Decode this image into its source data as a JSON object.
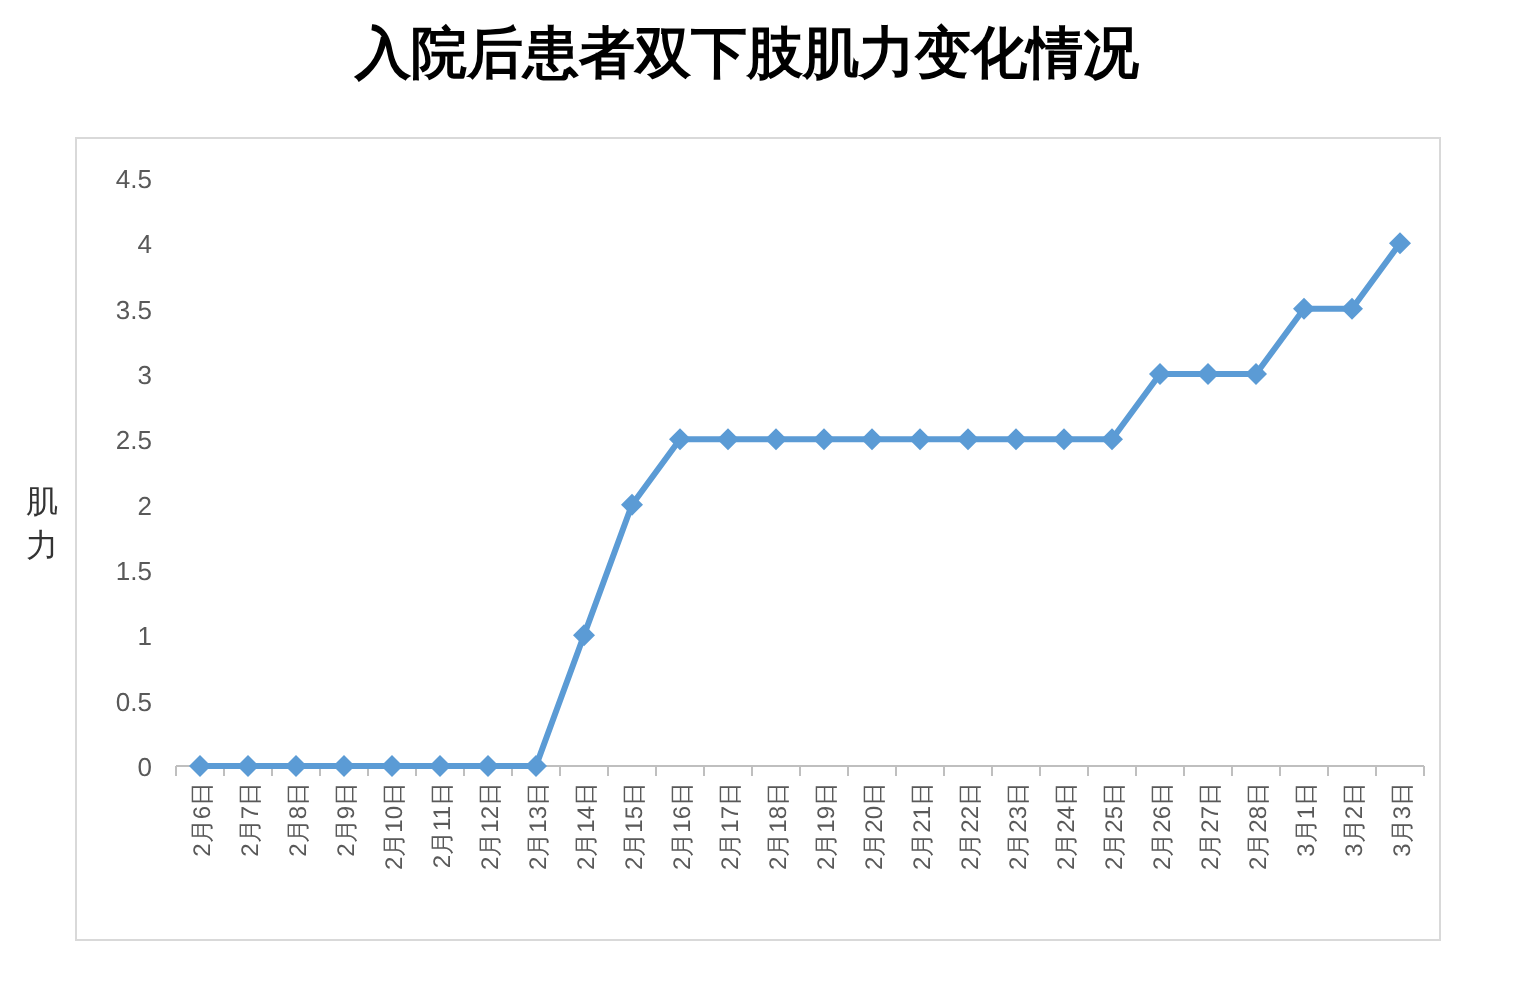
{
  "chart_data": {
    "type": "line",
    "title": "入院后患者双下肢肌力变化情况",
    "ylabel": "肌力",
    "categories": [
      "2月6日",
      "2月7日",
      "2月8日",
      "2月9日",
      "2月10日",
      "2月11日",
      "2月12日",
      "2月13日",
      "2月14日",
      "2月15日",
      "2月16日",
      "2月17日",
      "2月18日",
      "2月19日",
      "2月20日",
      "2月21日",
      "2月22日",
      "2月23日",
      "2月24日",
      "2月25日",
      "2月26日",
      "2月27日",
      "2月28日",
      "3月1日",
      "3月2日",
      "3月3日"
    ],
    "series": [
      {
        "color": "#5b9bd5",
        "values": [
          0,
          0,
          0,
          0,
          0,
          0,
          0,
          0,
          1,
          2,
          2.5,
          2.5,
          2.5,
          2.5,
          2.5,
          2.5,
          2.5,
          2.5,
          2.5,
          2.5,
          3,
          3,
          3,
          3.5,
          3.5,
          4
        ]
      }
    ],
    "ylim": [
      0,
      4.5
    ],
    "yticks": [
      0,
      0.5,
      1,
      1.5,
      2,
      2.5,
      3,
      3.5,
      4,
      4.5
    ],
    "grid": false,
    "marker": "diamond",
    "line_style": "solid"
  }
}
